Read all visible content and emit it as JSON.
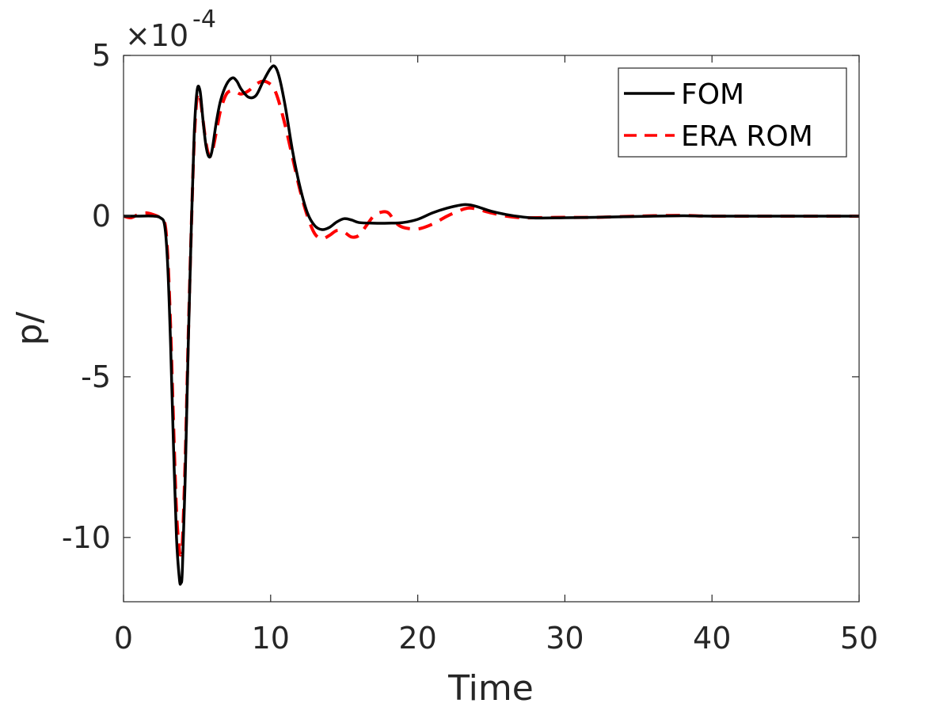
{
  "chart_data": {
    "type": "line",
    "xlabel": "Time",
    "ylabel": "p/",
    "exponent_base": "×10",
    "exponent_power": "-4",
    "xlim": [
      0,
      50
    ],
    "ylim": [
      -12,
      5
    ],
    "xticks": [
      0,
      10,
      20,
      30,
      40,
      50
    ],
    "xtick_labels": [
      "0",
      "10",
      "20",
      "30",
      "40",
      "50"
    ],
    "yticks": [
      5,
      0,
      -5,
      -10
    ],
    "ytick_labels": [
      "5",
      "0",
      "-5",
      "-10"
    ],
    "grid": false,
    "legend_position": "top-right",
    "series": [
      {
        "name": "FOM",
        "color": "#000000",
        "style": "solid",
        "x": [
          0,
          1,
          2,
          2.5,
          2.8,
          3.0,
          3.2,
          3.4,
          3.6,
          3.8,
          3.9,
          4.0,
          4.2,
          4.4,
          4.6,
          4.8,
          5.0,
          5.2,
          5.4,
          5.6,
          5.8,
          6.0,
          6.3,
          6.6,
          7.0,
          7.4,
          7.7,
          8.0,
          8.5,
          9.0,
          9.5,
          10.0,
          10.3,
          10.6,
          11.0,
          11.5,
          12.0,
          12.5,
          13.0,
          13.5,
          14.0,
          14.5,
          15.0,
          15.5,
          16.0,
          17.0,
          18.0,
          19.0,
          20.0,
          21.0,
          22.0,
          23.0,
          23.5,
          24.0,
          25.0,
          26.0,
          27.0,
          28.0,
          30.0,
          32.0,
          35.0,
          38.0,
          40.0,
          45.0,
          50.0
        ],
        "y": [
          0,
          0,
          0,
          -0.05,
          -0.3,
          -1.5,
          -4.0,
          -7.2,
          -10.0,
          -11.3,
          -11.4,
          -11.0,
          -8.0,
          -4.0,
          -0.5,
          2.5,
          3.9,
          3.9,
          3.0,
          2.2,
          1.85,
          2.0,
          2.9,
          3.6,
          4.1,
          4.3,
          4.2,
          3.95,
          3.7,
          3.75,
          4.2,
          4.6,
          4.65,
          4.3,
          3.4,
          2.0,
          0.9,
          0.1,
          -0.3,
          -0.42,
          -0.35,
          -0.18,
          -0.08,
          -0.12,
          -0.2,
          -0.22,
          -0.22,
          -0.2,
          -0.1,
          0.1,
          0.25,
          0.35,
          0.35,
          0.3,
          0.15,
          0.05,
          -0.02,
          -0.06,
          -0.05,
          -0.04,
          -0.01,
          0.01,
          0.0,
          0.0,
          0.0
        ]
      },
      {
        "name": "ERA ROM",
        "color": "#ff0000",
        "style": "dashed",
        "x": [
          0,
          0.5,
          1,
          1.5,
          2,
          2.5,
          2.8,
          3.0,
          3.2,
          3.4,
          3.6,
          3.8,
          3.9,
          4.0,
          4.2,
          4.4,
          4.6,
          4.8,
          5.0,
          5.2,
          5.4,
          5.6,
          5.8,
          6.0,
          6.3,
          6.6,
          7.0,
          7.4,
          7.7,
          8.0,
          8.5,
          9.0,
          9.5,
          10.0,
          10.3,
          10.6,
          11.0,
          11.5,
          12.0,
          12.5,
          13.0,
          13.5,
          14.0,
          14.5,
          15.0,
          15.5,
          16.0,
          16.5,
          17.0,
          17.5,
          18.0,
          18.5,
          19.0,
          20.0,
          21.0,
          22.0,
          23.0,
          23.5,
          24.0,
          25.0,
          26.0,
          27.0,
          28.0,
          30.0,
          32.0,
          35.0,
          38.0,
          40.0,
          45.0,
          50.0
        ],
        "y": [
          0,
          -0.05,
          0.05,
          0.1,
          0.05,
          -0.05,
          -0.2,
          -1.2,
          -3.5,
          -6.5,
          -9.2,
          -10.4,
          -10.5,
          -10.2,
          -7.5,
          -3.8,
          -0.5,
          2.3,
          3.7,
          3.7,
          3.0,
          2.3,
          1.9,
          1.95,
          2.6,
          3.3,
          3.8,
          3.9,
          3.85,
          3.8,
          3.9,
          4.1,
          4.2,
          4.1,
          3.9,
          3.5,
          2.8,
          1.8,
          0.8,
          0.0,
          -0.55,
          -0.7,
          -0.6,
          -0.45,
          -0.5,
          -0.65,
          -0.6,
          -0.3,
          0.0,
          0.12,
          0.1,
          -0.2,
          -0.35,
          -0.4,
          -0.25,
          0.0,
          0.2,
          0.25,
          0.22,
          0.1,
          0.0,
          -0.05,
          -0.05,
          -0.04,
          -0.04,
          0.0,
          0.02,
          0.0,
          0.0,
          0.0
        ]
      }
    ]
  }
}
